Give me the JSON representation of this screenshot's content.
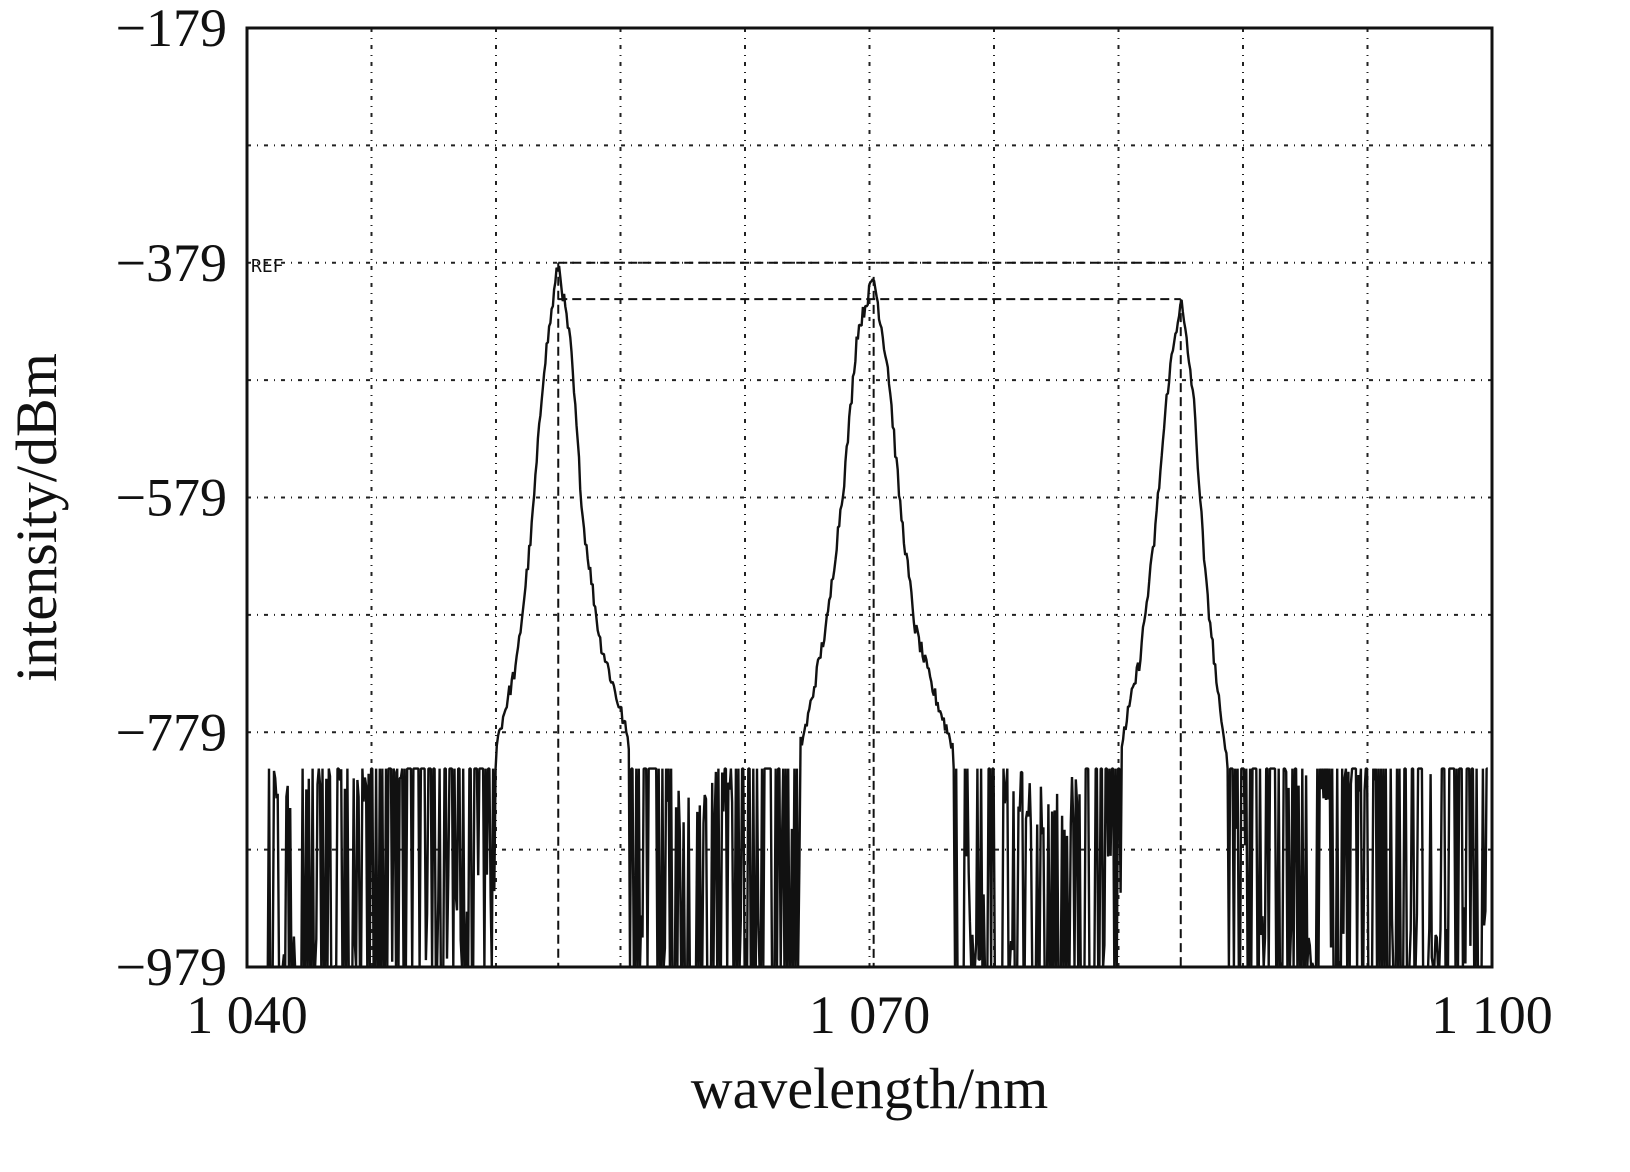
{
  "chart_data": {
    "type": "line",
    "xlabel": "wavelength/nm",
    "ylabel": "intensity/dBm",
    "xlim": [
      1040,
      1100
    ],
    "ylim": [
      -979,
      -179
    ],
    "x_ticks": [
      "1 040",
      "1 070",
      "1 100"
    ],
    "y_ticks": [
      "−179",
      "−379",
      "−579",
      "−779",
      "−979"
    ],
    "grid": true,
    "reference_label": "REF",
    "reference_level": -379,
    "x_grid_values": [
      1046,
      1052,
      1058,
      1064,
      1070,
      1076,
      1082,
      1088,
      1094
    ],
    "y_grid_values": [
      -279,
      -379,
      -479,
      -579,
      -679,
      -779,
      -879
    ],
    "peaks": [
      {
        "x": 1055.0,
        "y": -379
      },
      {
        "x": 1070.2,
        "y": -391
      },
      {
        "x": 1085.0,
        "y": -410
      }
    ],
    "marker_level": -410,
    "noise_floor": [
      -979,
      -810
    ],
    "series": [
      {
        "x": [
          1041,
          1043,
          1045,
          1047,
          1049,
          1050,
          1051,
          1052,
          1053,
          1053.7,
          1054.3,
          1055.0,
          1055.6,
          1056.2,
          1057,
          1058,
          1059,
          1060,
          1061,
          1062,
          1063,
          1064,
          1065,
          1066,
          1067,
          1068,
          1068.8,
          1069.4,
          1070.2,
          1070.9,
          1071.5,
          1072.2,
          1073,
          1074,
          1075,
          1076,
          1077,
          1078,
          1079,
          1080,
          1081,
          1082,
          1083,
          1083.7,
          1084.4,
          1085.0,
          1085.6,
          1086.2,
          1087,
          1088,
          1089,
          1090,
          1092,
          1094,
          1096,
          1098,
          1099.8
        ],
        "y": [
          -930,
          -900,
          -920,
          -895,
          -880,
          -850,
          -820,
          -790,
          -720,
          -610,
          -470,
          -379,
          -450,
          -600,
          -700,
          -760,
          -830,
          -900,
          -940,
          -930,
          -920,
          -890,
          -860,
          -830,
          -770,
          -680,
          -560,
          -440,
          -391,
          -470,
          -590,
          -690,
          -740,
          -790,
          -850,
          -900,
          -920,
          -940,
          -950,
          -930,
          -860,
          -800,
          -720,
          -620,
          -480,
          -410,
          -490,
          -650,
          -780,
          -830,
          -860,
          -900,
          -910,
          -900,
          -890,
          -880,
          -880
        ]
      }
    ]
  }
}
